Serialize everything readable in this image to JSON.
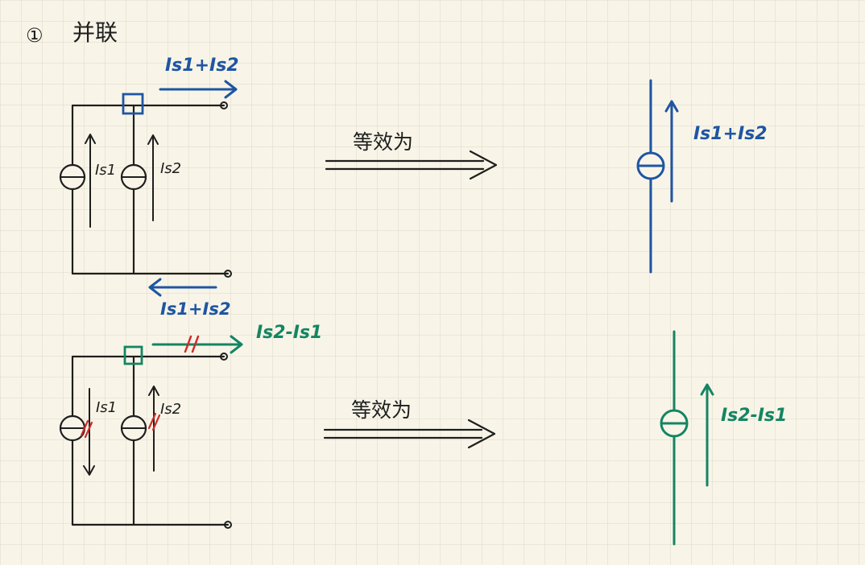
{
  "section": {
    "number": "①",
    "title": "并联"
  },
  "colors": {
    "paper": "#f8f5e8",
    "grid": "#ddd9c8",
    "ink": "#1e1e1e",
    "blue": "#1f55a3",
    "green": "#148563",
    "red": "#d12a2a"
  },
  "top": {
    "source1_label": "Is1",
    "source2_label": "Is2",
    "output_label": "Is1+Is2",
    "return_label": "Is1+Is2",
    "equivalent_text": "等效为",
    "result_label": "Is1+Is2"
  },
  "bottom": {
    "source1_label": "Is1",
    "source2_label": "Is2",
    "output_label": "Is2-Is1",
    "equivalent_text": "等效为",
    "result_label": "Is2-Is1"
  },
  "icons": {
    "current_source": "current-source-icon",
    "arrow": "arrow-icon",
    "equivalence_arrow": "double-arrow-icon",
    "node": "node-square-icon",
    "terminal": "terminal-dot-icon",
    "cancel_mark": "double-slash-icon"
  }
}
